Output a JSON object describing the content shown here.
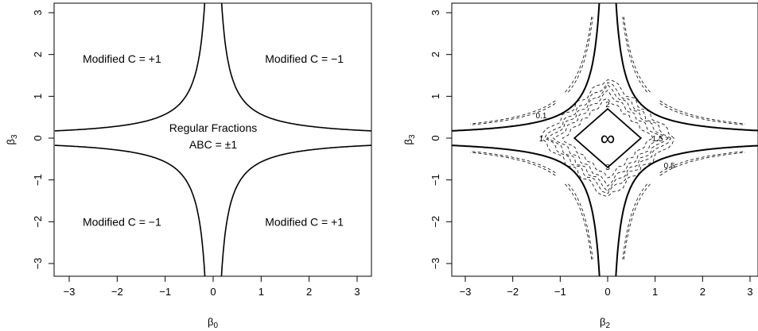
{
  "chart_data": [
    {
      "type": "line",
      "panel": "left",
      "xlabel": "β0",
      "xlabel_base": "β",
      "xlabel_sub": "0",
      "ylabel": "β3",
      "ylabel_base": "β",
      "ylabel_sub": "3",
      "xlim": [
        -3.0,
        3.0
      ],
      "ylim": [
        -3.0,
        3.0
      ],
      "xticks": [
        -3,
        -2,
        -1,
        0,
        1,
        2,
        3
      ],
      "yticks": [
        -3,
        -2,
        -1,
        0,
        1,
        2,
        3
      ],
      "xtick_labels": [
        "−3",
        "−2",
        "−1",
        "0",
        "1",
        "2",
        "3"
      ],
      "ytick_labels": [
        "−3",
        "−2",
        "−1",
        "0",
        "1",
        "2",
        "3"
      ],
      "grid": false,
      "curves": [
        {
          "branch": "upper-left",
          "k": 0.57
        },
        {
          "branch": "upper-right",
          "k": 0.57
        },
        {
          "branch": "lower-left",
          "k": 0.57
        },
        {
          "branch": "lower-right",
          "k": 0.57
        }
      ],
      "annotations": [
        {
          "text": "Modified C = +1",
          "x": -1.9,
          "y": 1.9
        },
        {
          "text": "Modified C = −1",
          "x": 1.9,
          "y": 1.9
        },
        {
          "text": "Regular Fractions",
          "x": 0.0,
          "y": 0.25
        },
        {
          "text": "ABC = ±1",
          "x": 0.0,
          "y": -0.15
        },
        {
          "text": "Modified C = −1",
          "x": -1.9,
          "y": -2.0
        },
        {
          "text": "Modified C = +1",
          "x": 1.9,
          "y": -2.0
        }
      ]
    },
    {
      "type": "line",
      "panel": "right",
      "xlabel": "β2",
      "xlabel_base": "β",
      "xlabel_sub": "2",
      "ylabel": "β3",
      "ylabel_base": "β",
      "ylabel_sub": "3",
      "xlim": [
        -3.0,
        3.0
      ],
      "ylim": [
        -3.0,
        3.0
      ],
      "xticks": [
        -3,
        -2,
        -1,
        0,
        1,
        2,
        3
      ],
      "yticks": [
        -3,
        -2,
        -1,
        0,
        1,
        2,
        3
      ],
      "xtick_labels": [
        "−3",
        "−2",
        "−1",
        "0",
        "1",
        "2",
        "3"
      ],
      "ytick_labels": [
        "−3",
        "−2",
        "−1",
        "0",
        "1",
        "2",
        "3"
      ],
      "grid": false,
      "curves": [
        {
          "branch": "upper-left",
          "k": 0.57
        },
        {
          "branch": "upper-right",
          "k": 0.57
        },
        {
          "branch": "lower-left",
          "k": 0.57
        },
        {
          "branch": "lower-right",
          "k": 0.57
        }
      ],
      "center_diamond_radius": 0.7,
      "contour_levels": [
        {
          "label": "2",
          "r": 0.95
        },
        {
          "label": "1.5",
          "r": 1.1
        },
        {
          "label": "1",
          "r": 1.22
        },
        {
          "label": "0.5",
          "r": 1.32
        },
        {
          "label": "0.1",
          "r": 1.45
        }
      ],
      "contour_labels": [
        {
          "text": "2",
          "x": 0.0,
          "y": 0.82
        },
        {
          "text": "3",
          "x": 0.0,
          "y": -0.68
        },
        {
          "text": "1.5",
          "x": 1.05,
          "y": 0.0
        },
        {
          "text": "1",
          "x": -1.4,
          "y": 0.0
        },
        {
          "text": "0.1",
          "x": -1.4,
          "y": 0.55
        },
        {
          "text": "0.5",
          "x": 1.3,
          "y": -0.65
        }
      ],
      "center_label": "∞"
    }
  ]
}
